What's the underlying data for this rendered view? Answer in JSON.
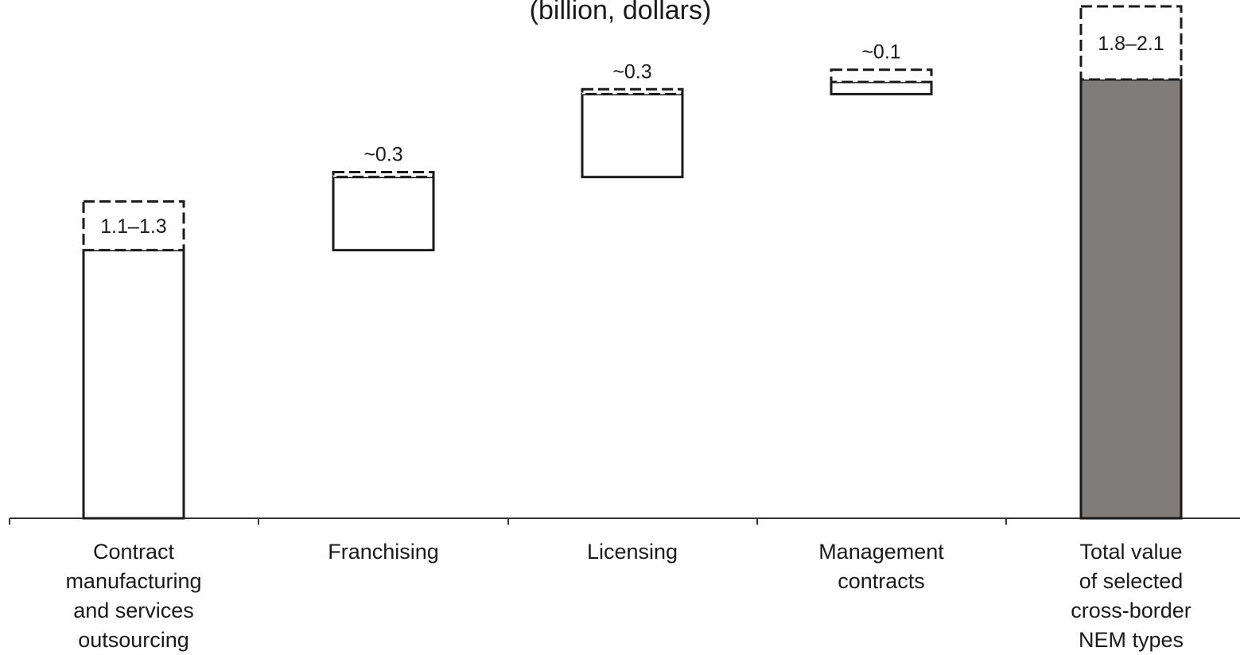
{
  "chart_data": {
    "type": "bar",
    "subtitle": "(billion, dollars)",
    "categories": [
      [
        "Contract",
        "manufacturing",
        "and services",
        "outsourcing"
      ],
      [
        "Franchising"
      ],
      [
        "Licensing"
      ],
      [
        "Management",
        "contracts"
      ],
      [
        "Total value",
        "of selected",
        "cross-border",
        "NEM types"
      ]
    ],
    "bars": [
      {
        "base": 0.0,
        "low": 1.1,
        "high": 1.3,
        "label": "1.1–1.3",
        "kind": "step"
      },
      {
        "base": 1.1,
        "low": 1.4,
        "high": 1.42,
        "label": "~0.3",
        "kind": "step"
      },
      {
        "base": 1.4,
        "low": 1.74,
        "high": 1.76,
        "label": "~0.3",
        "kind": "step"
      },
      {
        "base": 1.74,
        "low": 1.79,
        "high": 1.84,
        "label": "~0.1",
        "kind": "step"
      },
      {
        "base": 0.0,
        "low": 1.8,
        "high": 2.1,
        "label": "1.8–2.1",
        "kind": "total"
      }
    ],
    "ylim": [
      0,
      2.1
    ],
    "grid": false,
    "legend": "none",
    "colors": {
      "total_fill": "#7f7c7a",
      "step_fill": "#ffffff",
      "stroke": "#1a1a1a"
    }
  }
}
